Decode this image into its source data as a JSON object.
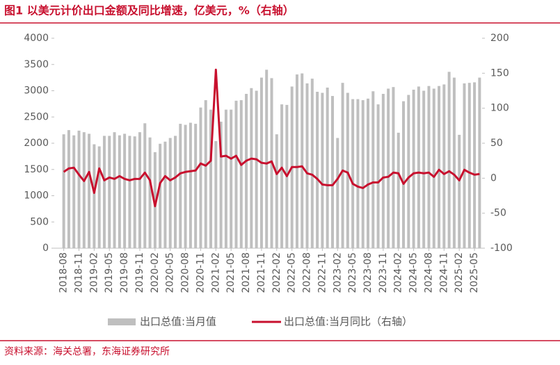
{
  "title": "图1  以美元计价出口金额及同比增速，亿美元，%（右轴）",
  "source": "资料来源：海关总署，东海证券研究所",
  "chart_data": {
    "type": "bar",
    "categories": [
      "2018-08",
      null,
      null,
      "2018-11",
      null,
      null,
      "2019-02",
      null,
      null,
      "2019-05",
      null,
      null,
      "2019-08",
      null,
      null,
      "2019-11",
      null,
      null,
      "2020-02",
      null,
      null,
      "2020-05",
      null,
      null,
      "2020-08",
      null,
      null,
      "2020-11",
      null,
      null,
      "2021-02",
      null,
      null,
      "2021-05",
      null,
      null,
      "2021-08",
      null,
      null,
      "2021-11",
      null,
      null,
      "2022-02",
      null,
      null,
      "2022-05",
      null,
      null,
      "2022-08",
      null,
      null,
      "2022-11",
      null,
      null,
      "2023-02",
      null,
      null,
      "2023-05",
      null,
      null,
      "2023-08",
      null,
      null,
      "2023-11",
      null,
      null,
      "2024-02",
      null,
      null,
      "2024-05",
      null,
      null,
      "2024-08",
      null,
      null,
      "2024-11",
      null,
      null,
      "2025-02",
      null,
      null,
      "2025-05",
      null
    ],
    "series": [
      {
        "name": "出口总值:当月值",
        "type": "bar",
        "color": "#bfbfbf",
        "values": [
          2170,
          2250,
          2150,
          2240,
          2210,
          2180,
          1980,
          1940,
          2140,
          2140,
          2210,
          2150,
          2180,
          2140,
          2130,
          2210,
          2380,
          2110,
          1830,
          1990,
          2030,
          2100,
          2140,
          2370,
          2350,
          2390,
          2370,
          2680,
          2820,
          2640,
          2040,
          2410,
          2640,
          2640,
          2810,
          2820,
          2940,
          3050,
          3000,
          3250,
          3400,
          3240,
          2170,
          2740,
          2730,
          3080,
          3310,
          3330,
          3140,
          3230,
          2980,
          2960,
          3060,
          2900,
          2100,
          3150,
          2960,
          2840,
          2840,
          2820,
          2850,
          2990,
          2740,
          2940,
          3040,
          3070,
          2200,
          2800,
          2920,
          3020,
          3080,
          3000,
          3090,
          3040,
          3090,
          3120,
          3360,
          3250,
          2160,
          3140,
          3150,
          3160,
          3250
        ]
      },
      {
        "name": "出口总值:当月同比（右轴）",
        "type": "line",
        "axis": "y2",
        "color": "#c8102e",
        "values": [
          9,
          14,
          15,
          5,
          -4,
          9,
          -21,
          14,
          -3,
          1,
          -1,
          3,
          -1,
          -3,
          -1,
          -1,
          8,
          -3,
          -40,
          -7,
          3,
          -3,
          1,
          7,
          9,
          10,
          11,
          21,
          18,
          25,
          155,
          31,
          32,
          28,
          32,
          19,
          25,
          28,
          27,
          22,
          21,
          24,
          6,
          15,
          3,
          16,
          16,
          17,
          7,
          5,
          -1,
          -9,
          -10,
          -10,
          -1,
          11,
          8,
          -8,
          -12,
          -14,
          -9,
          -6,
          -6,
          1,
          2,
          8,
          7,
          -8,
          1,
          7,
          8,
          7,
          8,
          2,
          12,
          6,
          10,
          5,
          -3,
          12,
          8,
          5,
          6
        ]
      }
    ],
    "ylim": [
      0,
      4000
    ],
    "yticks": [
      0,
      500,
      1000,
      1500,
      2000,
      2500,
      3000,
      3500,
      4000
    ],
    "y2lim": [
      -100,
      200
    ],
    "y2ticks": [
      -100,
      -50,
      0,
      50,
      100,
      150,
      200
    ],
    "grid": false
  }
}
